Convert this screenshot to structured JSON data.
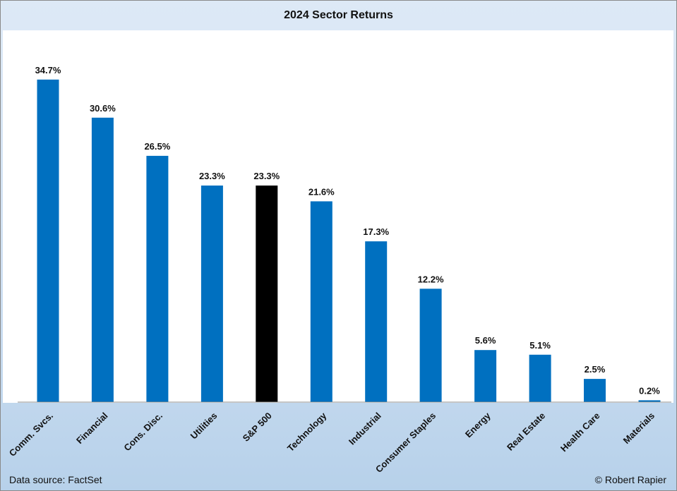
{
  "chart_data": {
    "type": "bar",
    "title": "2024 Sector Returns",
    "xlabel": "",
    "ylabel": "",
    "categories": [
      "Comm. Svcs.",
      "Financial",
      "Cons. Disc.",
      "Utilities",
      "S&P 500",
      "Technology",
      "Industrial",
      "Consumer Staples",
      "Energy",
      "Real Estate",
      "Health Care",
      "Materials"
    ],
    "values": [
      34.7,
      30.6,
      26.5,
      23.3,
      23.3,
      21.6,
      17.3,
      12.2,
      5.6,
      5.1,
      2.5,
      0.2
    ],
    "value_labels": [
      "34.7%",
      "30.6%",
      "26.5%",
      "23.3%",
      "23.3%",
      "21.6%",
      "17.3%",
      "12.2%",
      "5.6%",
      "5.1%",
      "2.5%",
      "0.2%"
    ],
    "ylim": [
      0,
      40
    ],
    "grid": false,
    "legend": "none",
    "colors": {
      "bar": "#0070c0",
      "highlight_bar": "#000000",
      "highlight_category": "S&P 500",
      "axis": "#8c8c8c",
      "background": "#cfe0f2",
      "plot_background": "#ffffff"
    }
  },
  "footer": {
    "source": "Data source: FactSet",
    "copyright": "© Robert Rapier"
  }
}
